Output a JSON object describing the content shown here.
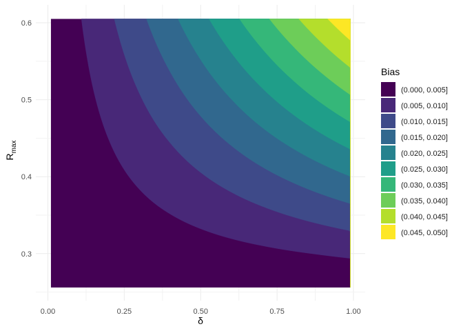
{
  "chart_data": {
    "type": "filled-contour",
    "title": "",
    "xlabel": "δ",
    "ylabel": "R",
    "ylabel_subscript": "max",
    "x_range": [
      0.01,
      0.99
    ],
    "y_range": [
      0.256,
      0.605
    ],
    "xlim": [
      0.0,
      1.0
    ],
    "ylim": [
      0.25,
      0.62
    ],
    "x_ticks": [
      "0.00",
      "0.25",
      "0.50",
      "0.75",
      "1.00"
    ],
    "x_tick_values": [
      0,
      0.25,
      0.5,
      0.75,
      1.0
    ],
    "y_ticks": [
      "0.3",
      "0.4",
      "0.5",
      "0.6"
    ],
    "y_tick_values": [
      0.3,
      0.4,
      0.5,
      0.6
    ],
    "grid": true,
    "legend": {
      "title": "Bias",
      "placement": "right",
      "entries": [
        "(0.000, 0.005]",
        "(0.005, 0.010]",
        "(0.010, 0.015]",
        "(0.015, 0.020]",
        "(0.020, 0.025]",
        "(0.025, 0.030]",
        "(0.030, 0.035]",
        "(0.035, 0.040]",
        "(0.040, 0.045]",
        "(0.045, 0.050]"
      ]
    },
    "levels": [
      0.005,
      0.01,
      0.015,
      0.02,
      0.025,
      0.03,
      0.035,
      0.04,
      0.045
    ],
    "colors": [
      "#440154",
      "#482878",
      "#3E4A89",
      "#31688E",
      "#26828E",
      "#1F9E89",
      "#35B779",
      "#6DCD59",
      "#B4DE2C",
      "#FDE725"
    ],
    "grid_x": [
      0,
      0.1,
      0.2,
      0.3,
      0.4,
      0.5,
      0.6,
      0.7,
      0.8,
      0.9,
      1.0
    ],
    "grid_y": [
      0.256,
      0.3,
      0.35,
      0.4,
      0.45,
      0.5,
      0.55,
      0.605
    ],
    "z": [
      [
        0,
        0,
        0,
        0,
        0,
        0,
        0,
        0,
        0,
        0,
        0
      ],
      [
        0,
        0.00054,
        0.00109,
        0.00165,
        0.00222,
        0.0028,
        0.00339,
        0.00399,
        0.00461,
        0.00523,
        0.00587
      ],
      [
        0,
        0.0012,
        0.00241,
        0.00366,
        0.00492,
        0.00621,
        0.00753,
        0.00886,
        0.01023,
        0.01161,
        0.01302
      ],
      [
        0,
        0.00185,
        0.00374,
        0.00567,
        0.00763,
        0.00963,
        0.01166,
        0.01374,
        0.01584,
        0.01799,
        0.02017
      ],
      [
        0,
        0.00251,
        0.00507,
        0.00768,
        0.01033,
        0.01304,
        0.0158,
        0.01861,
        0.02146,
        0.02437,
        0.02733
      ],
      [
        0,
        0.00317,
        0.00639,
        0.00969,
        0.01304,
        0.01646,
        0.01993,
        0.02348,
        0.02708,
        0.03075,
        0.03448
      ],
      [
        0,
        0.00382,
        0.00772,
        0.0117,
        0.01574,
        0.01987,
        0.02407,
        0.02835,
        0.0327,
        0.03713,
        0.04163
      ],
      [
        0,
        0.00455,
        0.00918,
        0.01391,
        0.01872,
        0.02363,
        0.02862,
        0.03371,
        0.03888,
        0.04415,
        0.0495
      ]
    ]
  }
}
